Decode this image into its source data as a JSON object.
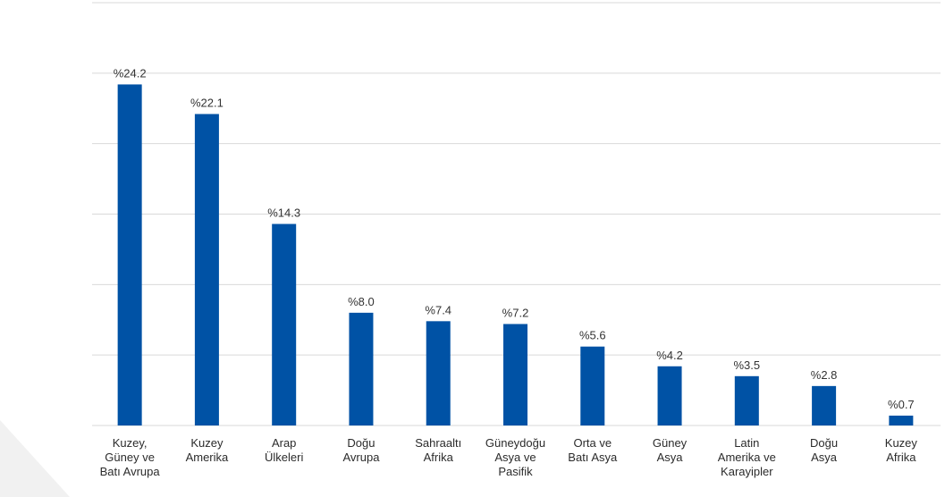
{
  "chart_data": {
    "type": "bar",
    "categories": [
      "Kuzey, Güney ve Batı Avrupa",
      "Kuzey Amerika",
      "Arap Ülkeleri",
      "Doğu Avrupa",
      "Sahraaltı Afrika",
      "Güneydoğu Asya ve Pasifik",
      "Orta ve Batı Asya",
      "Güney Asya",
      "Latin Amerika ve Karayipler",
      "Doğu Asya",
      "Kuzey Afrika"
    ],
    "category_lines": [
      [
        "Kuzey,",
        "Güney ve",
        "Batı Avrupa"
      ],
      [
        "Kuzey",
        "Amerika"
      ],
      [
        "Arap",
        "Ülkeleri"
      ],
      [
        "Doğu",
        "Avrupa"
      ],
      [
        "Sahraaltı",
        "Afrika"
      ],
      [
        "Güneydoğu",
        "Asya ve",
        "Pasifik"
      ],
      [
        "Orta ve",
        "Batı Asya"
      ],
      [
        "Güney",
        "Asya"
      ],
      [
        "Latin",
        "Amerika ve",
        "Karayipler"
      ],
      [
        "Doğu",
        "Asya"
      ],
      [
        "Kuzey",
        "Afrika"
      ]
    ],
    "values": [
      24.2,
      22.1,
      14.3,
      8.0,
      7.4,
      7.2,
      5.6,
      4.2,
      3.5,
      2.8,
      0.7
    ],
    "value_labels": [
      "%24.2",
      "%22.1",
      "%14.3",
      "%8.0",
      "%7.4",
      "%7.2",
      "%5.6",
      "%4.2",
      "%3.5",
      "%2.8",
      "%0.7"
    ],
    "title": "",
    "xlabel": "",
    "ylabel": "",
    "ylim": [
      0,
      30
    ],
    "gridlines": [
      0,
      5,
      10,
      15,
      20,
      25,
      30
    ],
    "grid": true,
    "bar_color": "#0052a5",
    "grid_color": "#d9d9d9"
  }
}
